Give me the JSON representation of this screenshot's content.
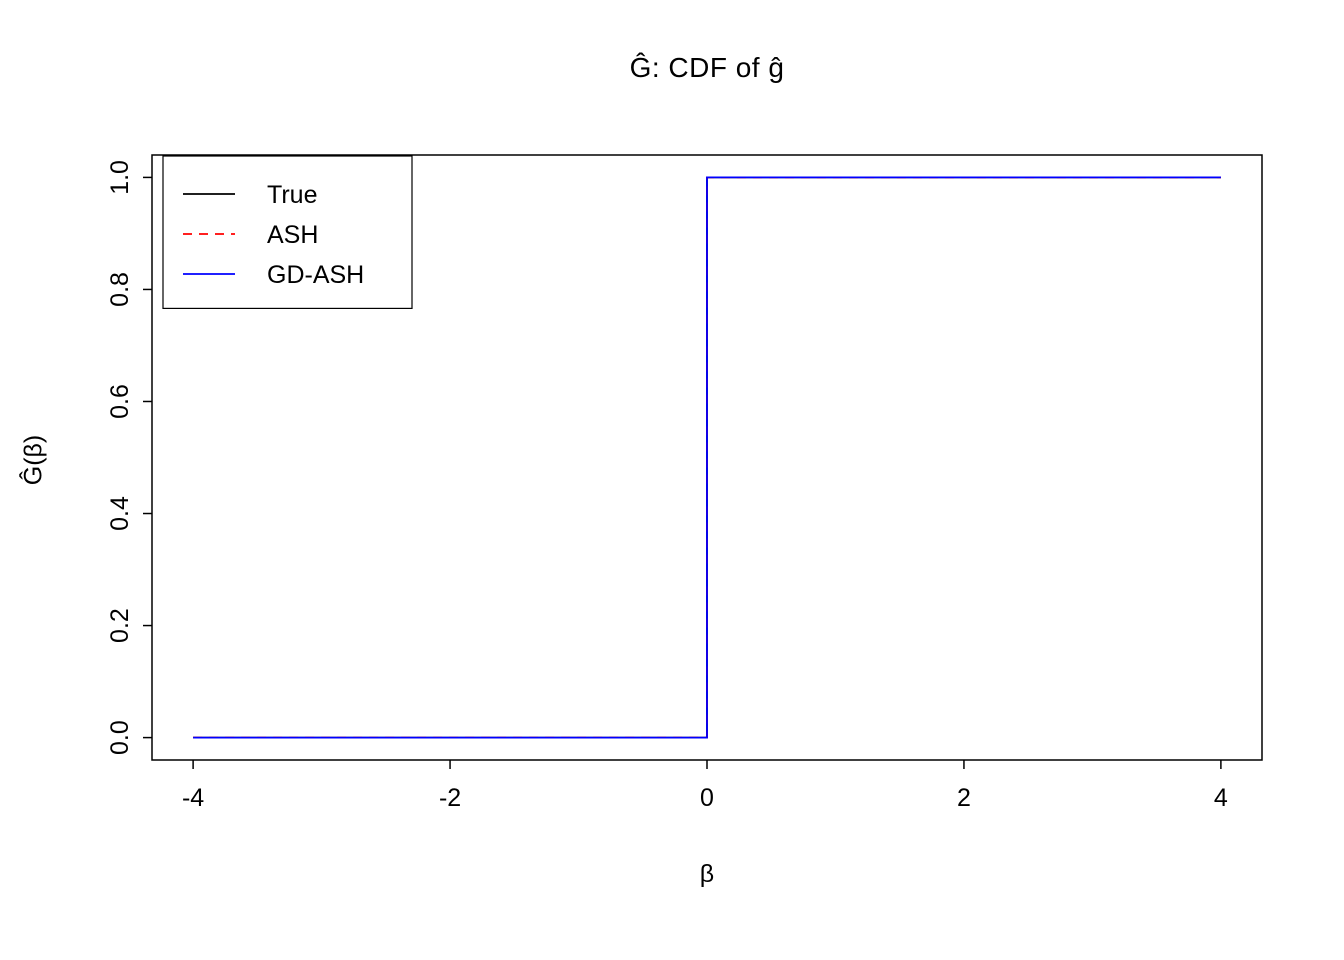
{
  "chart_data": {
    "type": "line",
    "title": "Ĝ: CDF of ĝ",
    "xlabel": "β",
    "ylabel": "Ĝ(β)",
    "xlim": [
      -4.32,
      4.32
    ],
    "ylim": [
      -0.04,
      1.04
    ],
    "x_ticks": [
      -4,
      -2,
      0,
      2,
      4
    ],
    "x_tick_labels": [
      "-4",
      "-2",
      "0",
      "2",
      "4"
    ],
    "y_ticks": [
      0.0,
      0.2,
      0.4,
      0.6,
      0.8,
      1.0
    ],
    "y_tick_labels": [
      "0.0",
      "0.2",
      "0.4",
      "0.6",
      "0.8",
      "1.0"
    ],
    "grid": false,
    "legend_position": "top-left",
    "background": "#ffffff",
    "axis_color": "#000000",
    "series": [
      {
        "name": "True",
        "color": "#000000",
        "dash": "solid",
        "x": [
          -4,
          0,
          0,
          4
        ],
        "y": [
          0,
          0,
          1,
          1
        ]
      },
      {
        "name": "ASH",
        "color": "#ff0000",
        "dash": "dashed",
        "x": [
          -4,
          0,
          0,
          4
        ],
        "y": [
          0,
          0,
          1,
          1
        ]
      },
      {
        "name": "GD-ASH",
        "color": "#0000ff",
        "dash": "solid",
        "x": [
          -4,
          0,
          0,
          4
        ],
        "y": [
          0,
          0,
          1,
          1
        ]
      }
    ]
  }
}
